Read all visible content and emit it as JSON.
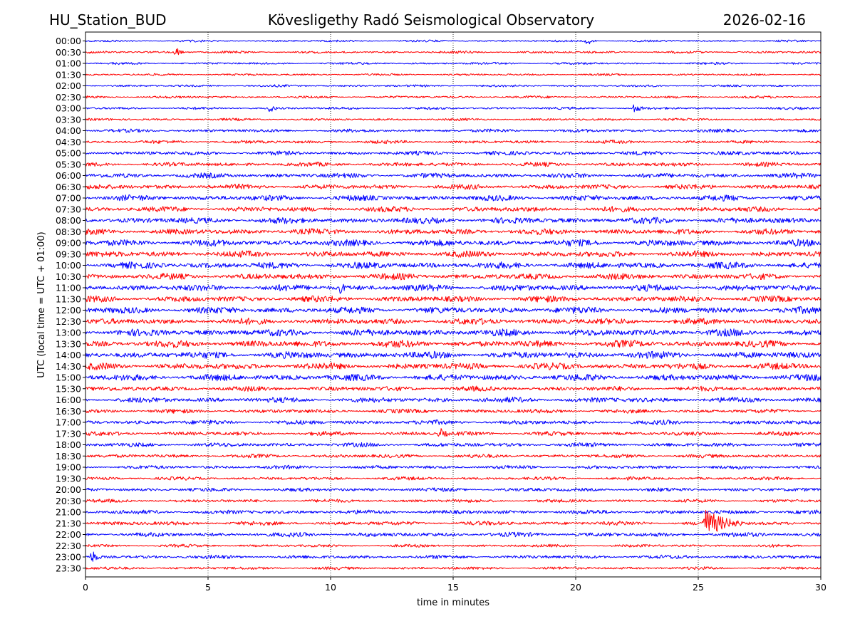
{
  "chart_data": {
    "type": "line",
    "title_left": "HU_Station_BUD",
    "title": "Kövesligethy Radó Seismological Observatory",
    "title_right": "2026-02-16",
    "xlabel": "time in minutes",
    "ylabel": "UTC (local time = UTC + 01:00)",
    "xlim": [
      0,
      30
    ],
    "x_ticks": [
      0,
      5,
      10,
      15,
      20,
      25,
      30
    ],
    "vertical_grid": [
      5,
      10,
      15,
      20,
      25
    ],
    "grid_style": "dotted",
    "trace_colors": [
      "#0000ff",
      "#ff0000"
    ],
    "rows": [
      "00:00",
      "00:30",
      "01:00",
      "01:30",
      "02:00",
      "02:30",
      "03:00",
      "03:30",
      "04:00",
      "04:30",
      "05:00",
      "05:30",
      "06:00",
      "06:30",
      "07:00",
      "07:30",
      "08:00",
      "08:30",
      "09:00",
      "09:30",
      "10:00",
      "10:30",
      "11:00",
      "11:30",
      "12:00",
      "12:30",
      "13:00",
      "13:30",
      "14:00",
      "14:30",
      "15:00",
      "15:30",
      "16:00",
      "16:30",
      "17:00",
      "17:30",
      "18:00",
      "18:30",
      "19:00",
      "19:30",
      "20:00",
      "20:30",
      "21:00",
      "21:30",
      "22:00",
      "22:30",
      "23:00",
      "23:30"
    ],
    "noise_amplitude_by_row": [
      0.5,
      0.6,
      0.55,
      0.5,
      0.55,
      0.6,
      0.6,
      0.6,
      0.8,
      0.8,
      1.0,
      1.0,
      1.2,
      1.2,
      1.4,
      1.3,
      1.5,
      1.4,
      1.6,
      1.5,
      1.6,
      1.5,
      1.6,
      1.5,
      1.6,
      1.5,
      1.7,
      1.7,
      1.7,
      1.6,
      1.6,
      1.2,
      1.3,
      1.0,
      1.1,
      1.0,
      1.0,
      0.9,
      0.9,
      0.8,
      0.9,
      0.8,
      1.0,
      1.0,
      1.1,
      0.7,
      0.9,
      0.7
    ],
    "events": [
      {
        "row": "00:00",
        "minute": 20.5,
        "amplitude": 1.5
      },
      {
        "row": "00:30",
        "minute": 3.7,
        "amplitude": 1.8
      },
      {
        "row": "03:00",
        "minute": 7.5,
        "amplitude": 1.7
      },
      {
        "row": "03:00",
        "minute": 22.4,
        "amplitude": 1.8
      },
      {
        "row": "11:00",
        "minute": 10.4,
        "amplitude": 1.6
      },
      {
        "row": "17:30",
        "minute": 14.5,
        "amplitude": 1.6
      },
      {
        "row": "21:30",
        "minute": 25.3,
        "amplitude": 5.0
      },
      {
        "row": "23:00",
        "minute": 0.3,
        "amplitude": 2.0
      }
    ]
  }
}
